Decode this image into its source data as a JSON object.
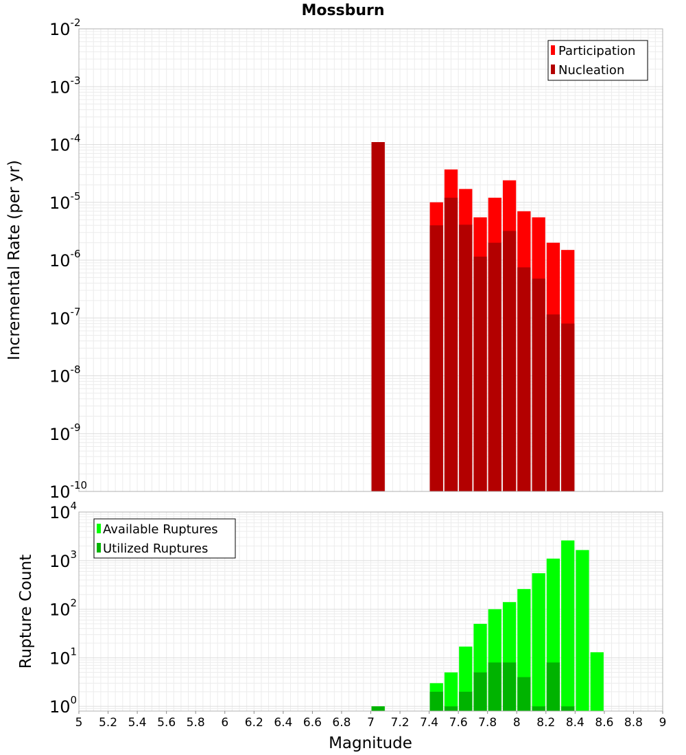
{
  "chart_data": [
    {
      "type": "bar",
      "title": "Mossburn",
      "xlabel": "",
      "ylabel": "Incremental Rate (per yr)",
      "yscale": "log",
      "ylim": [
        1e-10,
        0.01
      ],
      "xlim": [
        5,
        9
      ],
      "bin_width": 0.1,
      "grid": true,
      "legend_position": "top-right",
      "yticks": [
        {
          "base": "10",
          "exp": "-10",
          "value": 1e-10
        },
        {
          "base": "10",
          "exp": "-9",
          "value": 1e-09
        },
        {
          "base": "10",
          "exp": "-8",
          "value": 1e-08
        },
        {
          "base": "10",
          "exp": "-7",
          "value": 1e-07
        },
        {
          "base": "10",
          "exp": "-6",
          "value": 1e-06
        },
        {
          "base": "10",
          "exp": "-5",
          "value": 1e-05
        },
        {
          "base": "10",
          "exp": "-4",
          "value": 0.0001
        },
        {
          "base": "10",
          "exp": "-3",
          "value": 0.001
        },
        {
          "base": "10",
          "exp": "-2",
          "value": 0.01
        }
      ],
      "series": [
        {
          "name": "Participation",
          "color": "#ff0000",
          "x": [
            7.05,
            7.45,
            7.55,
            7.65,
            7.75,
            7.85,
            7.95,
            8.05,
            8.15,
            8.25,
            8.35
          ],
          "values": [
            0.00011,
            1e-05,
            3.7e-05,
            1.7e-05,
            5.5e-06,
            1.2e-05,
            2.4e-05,
            7e-06,
            5.5e-06,
            2e-06,
            1.5e-06
          ]
        },
        {
          "name": "Nucleation",
          "color": "#b30000",
          "x": [
            7.05,
            7.45,
            7.55,
            7.65,
            7.75,
            7.85,
            7.95,
            8.05,
            8.15,
            8.25,
            8.35
          ],
          "values": [
            0.00011,
            4e-06,
            1.2e-05,
            4.1e-06,
            1.15e-06,
            2e-06,
            3.2e-06,
            7.5e-07,
            4.8e-07,
            1.15e-07,
            8e-08
          ]
        }
      ]
    },
    {
      "type": "bar",
      "title": "",
      "xlabel": "Magnitude",
      "ylabel": "Rupture Count",
      "yscale": "log",
      "ylim": [
        0.8,
        10000
      ],
      "xlim": [
        5,
        9
      ],
      "bin_width": 0.1,
      "grid": true,
      "legend_position": "top-left",
      "yticks": [
        {
          "base": "10",
          "exp": "0",
          "value": 1
        },
        {
          "base": "10",
          "exp": "1",
          "value": 10
        },
        {
          "base": "10",
          "exp": "2",
          "value": 100
        },
        {
          "base": "10",
          "exp": "3",
          "value": 1000
        },
        {
          "base": "10",
          "exp": "4",
          "value": 10000
        }
      ],
      "xticks": [
        "5",
        "5.2",
        "5.4",
        "5.6",
        "5.8",
        "6",
        "6.2",
        "6.4",
        "6.6",
        "6.8",
        "7",
        "7.2",
        "7.4",
        "7.6",
        "7.8",
        "8",
        "8.2",
        "8.4",
        "8.6",
        "8.8",
        "9"
      ],
      "series": [
        {
          "name": "Available Ruptures",
          "color": "#00ff00",
          "x": [
            7.05,
            7.45,
            7.55,
            7.65,
            7.75,
            7.85,
            7.95,
            8.05,
            8.15,
            8.25,
            8.35,
            8.45,
            8.55
          ],
          "values": [
            1,
            3,
            5,
            17,
            50,
            100,
            140,
            260,
            550,
            1100,
            2600,
            1650,
            13
          ]
        },
        {
          "name": "Utilized Ruptures",
          "color": "#00b300",
          "x": [
            7.05,
            7.45,
            7.55,
            7.65,
            7.75,
            7.85,
            7.95,
            8.05,
            8.15,
            8.25,
            8.35
          ],
          "values": [
            1,
            2,
            1,
            2,
            5,
            8,
            8,
            4,
            1,
            8,
            1
          ]
        }
      ]
    }
  ]
}
